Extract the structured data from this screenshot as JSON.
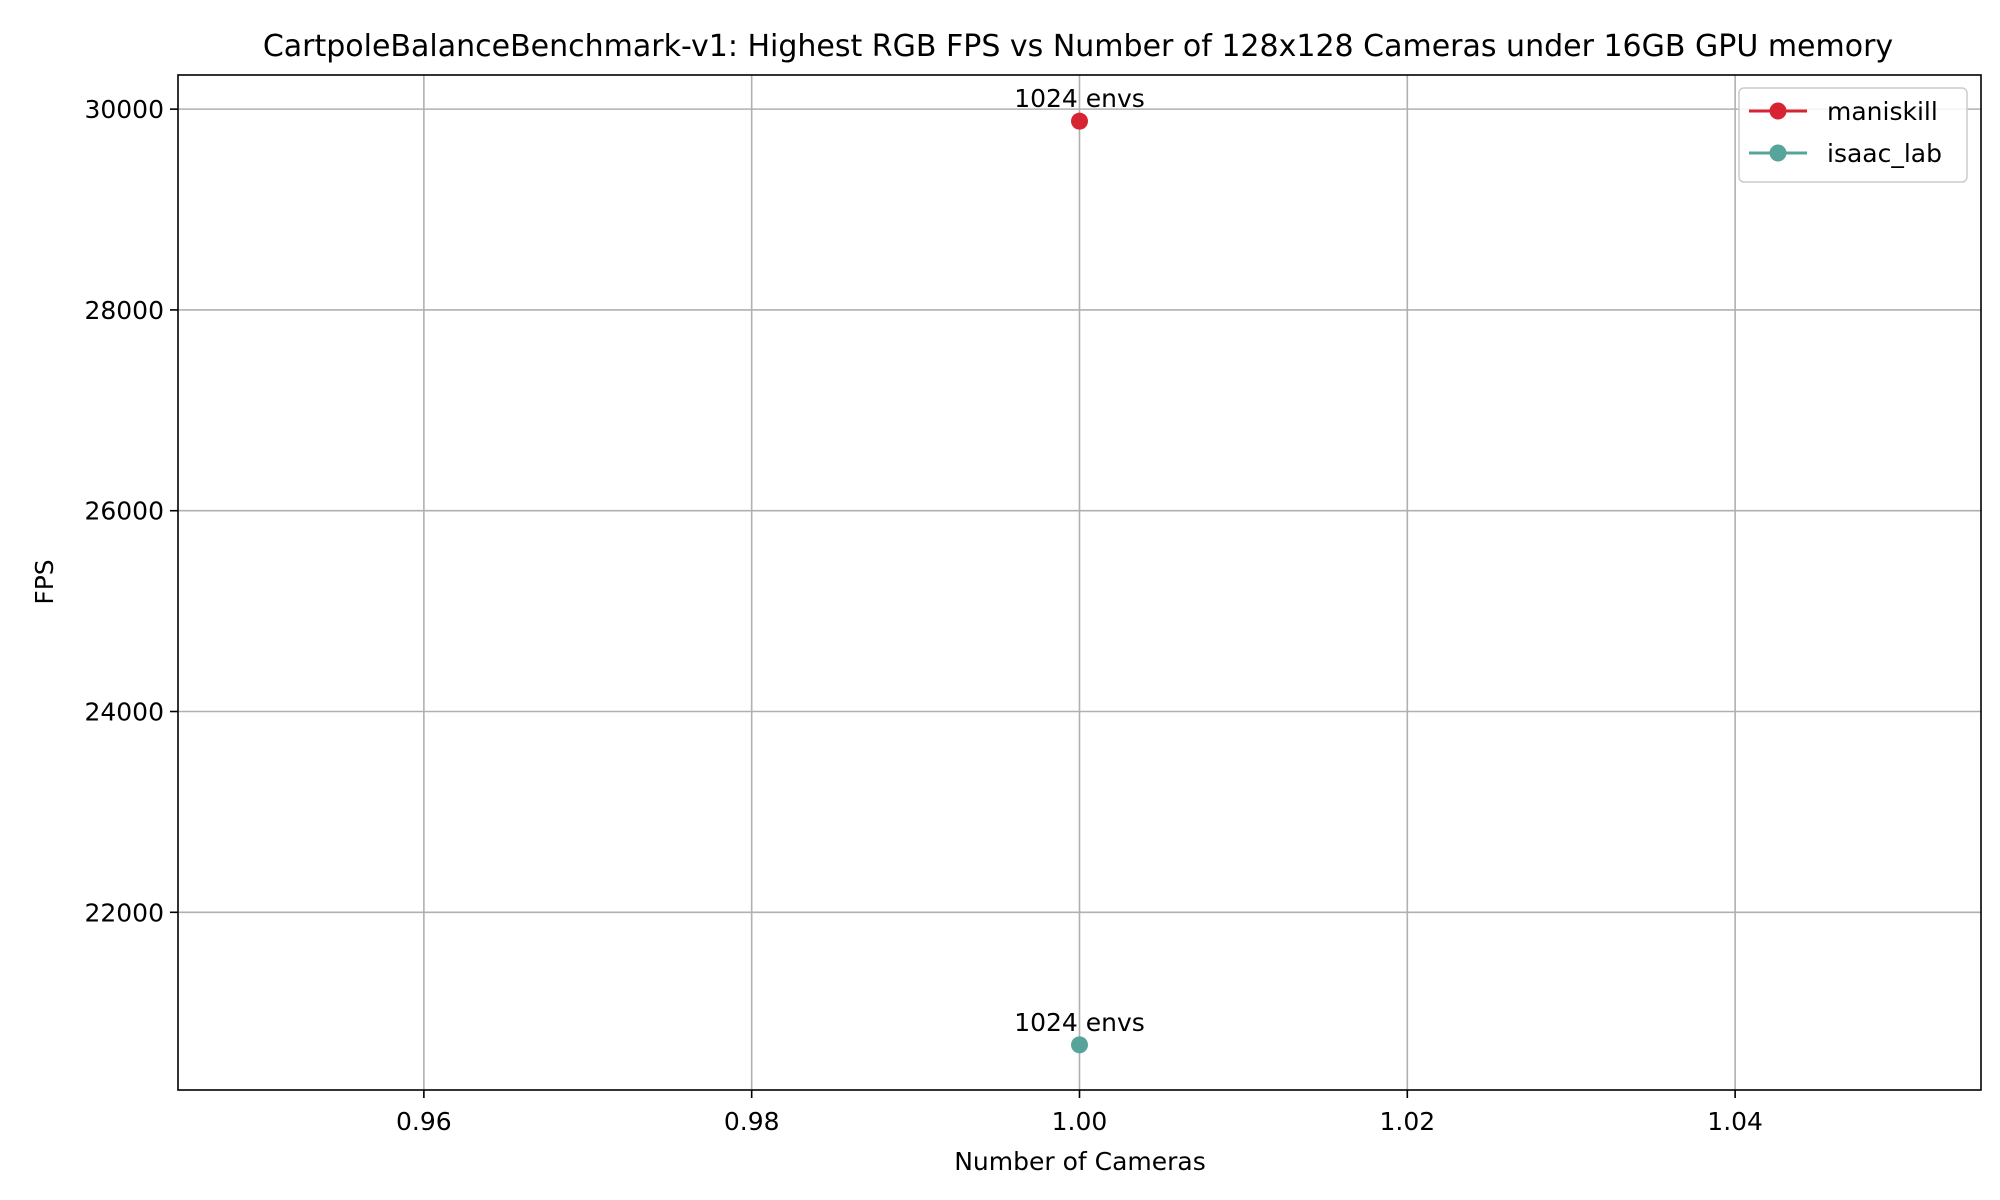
{
  "chart_data": {
    "type": "line",
    "title": "CartpoleBalanceBenchmark-v1: Highest RGB FPS vs Number of 128x128 Cameras under 16GB GPU memory",
    "xlabel": "Number of Cameras",
    "ylabel": "FPS",
    "xlim": [
      0.945,
      1.055
    ],
    "ylim": [
      20230,
      30340
    ],
    "xticks": [
      0.96,
      0.98,
      1.0,
      1.02,
      1.04
    ],
    "xtick_labels": [
      "0.96",
      "0.98",
      "1.00",
      "1.02",
      "1.04"
    ],
    "yticks": [
      22000,
      24000,
      26000,
      28000,
      30000
    ],
    "ytick_labels": [
      "22000",
      "24000",
      "26000",
      "28000",
      "30000"
    ],
    "grid": true,
    "legend_position": "top-right",
    "series": [
      {
        "name": "maniskill",
        "color": "#d62433",
        "points": [
          {
            "x": 1.0,
            "y": 29880,
            "label": "1024 envs"
          }
        ]
      },
      {
        "name": "isaac_lab",
        "color": "#57a49a",
        "points": [
          {
            "x": 1.0,
            "y": 20680,
            "label": "1024 envs"
          }
        ]
      }
    ]
  }
}
